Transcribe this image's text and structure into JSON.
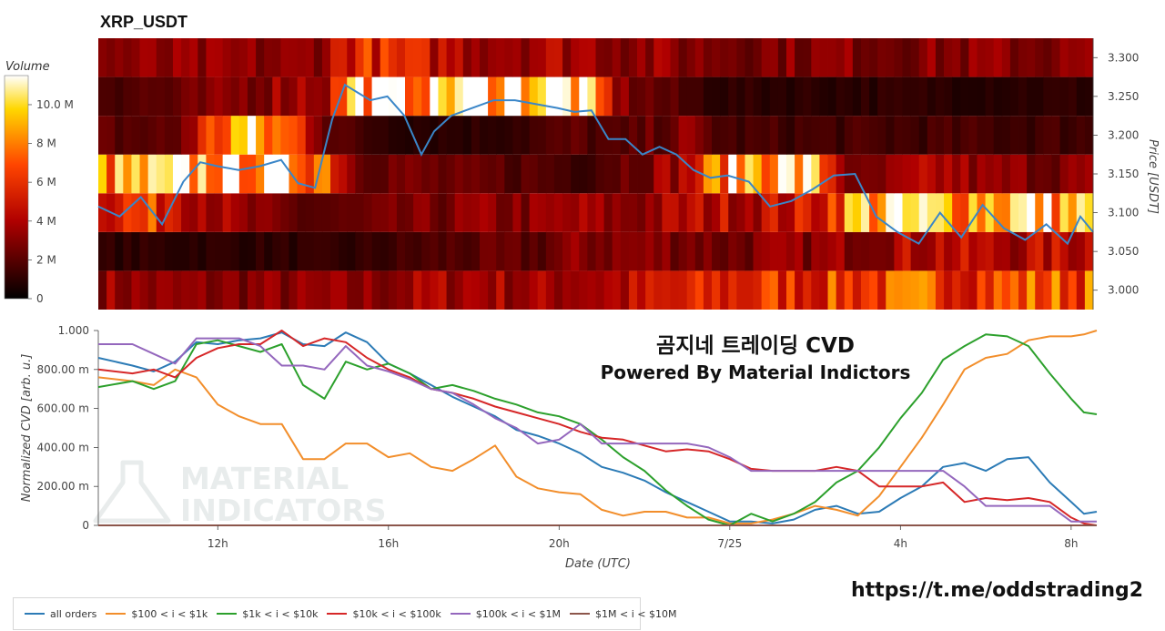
{
  "header": {
    "title": "XRP_USDT"
  },
  "overlay": {
    "line1": "곰지네 트레이딩 CVD",
    "line2": "Powered By Material Indictors"
  },
  "link_text": "https://t.me/oddstrading2",
  "watermark": {
    "line1": "MATERIAL",
    "line2": "INDICATORS"
  },
  "colors": {
    "all_orders": "#2c7bb6",
    "s100_1k": "#f28e2b",
    "s1k_10k": "#2ca02c",
    "s10k_100k": "#d62728",
    "s100k_1m": "#9467bd",
    "s1m_10m": "#8c564b",
    "price_line": "#3a86c8"
  },
  "legend": {
    "items": [
      {
        "label": "all orders",
        "color_key": "all_orders"
      },
      {
        "label": "$100 < i < $1k",
        "color_key": "s100_1k"
      },
      {
        "label": "$1k < i < $10k",
        "color_key": "s1k_10k"
      },
      {
        "label": "$10k < i < $100k",
        "color_key": "s10k_100k"
      },
      {
        "label": "$100k < i < $1M",
        "color_key": "s100k_1m"
      },
      {
        "label": "$1M < i < $10M",
        "color_key": "s1m_10m"
      }
    ]
  },
  "chart_data": [
    {
      "type": "heatmap",
      "title": "XRP_USDT",
      "ylabel": "Price [USDT]",
      "ylim": [
        2.975,
        3.325
      ],
      "yticks": [
        3.0,
        3.05,
        3.1,
        3.15,
        3.2,
        3.25,
        3.3
      ],
      "ytick_labels": [
        "3.000",
        "3.050",
        "3.100",
        "3.150",
        "3.200",
        "3.250",
        "3.300"
      ],
      "price_bins": [
        3.0,
        3.05,
        3.1,
        3.15,
        3.2,
        3.25,
        3.3
      ],
      "time_range_hours": [
        9.2,
        32.6
      ],
      "colorbar": {
        "label": "Volume",
        "range": [
          0,
          11500000
        ],
        "ticks": [
          0,
          2000000,
          4000000,
          6000000,
          8000000,
          10000000
        ],
        "tick_labels": [
          "0",
          "2 M",
          "4 M",
          "6 M",
          "8 M",
          "10.0 M"
        ]
      },
      "volume_keyframes": {
        "hours": [
          9.2,
          11,
          12.5,
          14,
          14.6,
          15.2,
          16.5,
          18,
          19.5,
          20.5,
          21.5,
          23,
          24,
          25,
          26,
          27,
          28,
          29,
          30,
          31,
          32,
          32.6
        ],
        "bins": [
          [
            3.5,
            3,
            3,
            3,
            3,
            3,
            3.5,
            4,
            3.5,
            4,
            4,
            5,
            5.5,
            6,
            6,
            6.5,
            6.5,
            7,
            6.5,
            7,
            7,
            7
          ],
          [
            1,
            1,
            1,
            1,
            1,
            1,
            1.5,
            2,
            2,
            3,
            3,
            3,
            2.5,
            3,
            3,
            3.5,
            4,
            4.5,
            4,
            4,
            4.5,
            4.5
          ],
          [
            6,
            6,
            3,
            2,
            2,
            2,
            2.5,
            3,
            3,
            3.5,
            3,
            4,
            4.5,
            4.5,
            5,
            9,
            10,
            9,
            9.5,
            10,
            9,
            9
          ],
          [
            8,
            9,
            10,
            9,
            8,
            3,
            2.5,
            2,
            2,
            1.5,
            2.5,
            4,
            9,
            10,
            9,
            2,
            3,
            4,
            3,
            3,
            3,
            3
          ],
          [
            2,
            2,
            9.5,
            6,
            2.5,
            1.5,
            1,
            1,
            1.5,
            2,
            1.5,
            3,
            1.5,
            1.5,
            1.5,
            1.5,
            1.5,
            1.5,
            1.5,
            1.5,
            1.5,
            1.5
          ],
          [
            2,
            2,
            3,
            4,
            4,
            10,
            9.5,
            11,
            11,
            10,
            3,
            1.5,
            1,
            1,
            1,
            1,
            1,
            1,
            1,
            1,
            1,
            1
          ],
          [
            3,
            3,
            3,
            3,
            4,
            6,
            5,
            4,
            4,
            4,
            3.5,
            3,
            3,
            3,
            3,
            3,
            3,
            3,
            3,
            3,
            3,
            3
          ]
        ]
      },
      "price_line": {
        "hours": [
          9.2,
          9.7,
          10.2,
          10.7,
          11.2,
          11.6,
          12.0,
          12.5,
          13.0,
          13.5,
          13.9,
          14.3,
          14.7,
          15.0,
          15.3,
          15.6,
          16.0,
          16.4,
          16.8,
          17.1,
          17.5,
          18.0,
          18.5,
          19.0,
          19.5,
          20.0,
          20.4,
          20.8,
          21.2,
          21.6,
          22.0,
          22.4,
          22.8,
          23.2,
          23.6,
          24.0,
          24.5,
          25.0,
          25.5,
          26.0,
          26.5,
          27.0,
          27.5,
          28.0,
          28.5,
          29.0,
          29.5,
          30.0,
          30.5,
          31.0,
          31.5,
          32.0,
          32.3,
          32.6
        ],
        "prices": [
          3.108,
          3.095,
          3.12,
          3.085,
          3.14,
          3.165,
          3.16,
          3.155,
          3.16,
          3.168,
          3.138,
          3.132,
          3.22,
          3.265,
          3.255,
          3.245,
          3.25,
          3.225,
          3.175,
          3.205,
          3.225,
          3.235,
          3.245,
          3.245,
          3.24,
          3.235,
          3.23,
          3.232,
          3.195,
          3.195,
          3.175,
          3.185,
          3.175,
          3.155,
          3.145,
          3.148,
          3.14,
          3.108,
          3.115,
          3.13,
          3.148,
          3.15,
          3.095,
          3.075,
          3.06,
          3.1,
          3.068,
          3.11,
          3.08,
          3.065,
          3.085,
          3.06,
          3.095,
          3.075
        ]
      }
    },
    {
      "type": "line",
      "xlabel": "Date (UTC)",
      "ylabel": "Normalized CVD [arb. u.]",
      "ylim": [
        0,
        1
      ],
      "yticks": [
        0,
        0.2,
        0.4,
        0.6,
        0.8,
        1.0
      ],
      "ytick_labels": [
        "0",
        "200.00 m",
        "400.00 m",
        "600.00 m",
        "800.00 m",
        "1.000"
      ],
      "xlim_hours": [
        9.2,
        32.6
      ],
      "xticks": [
        12,
        16,
        20,
        24,
        28,
        32
      ],
      "xtick_labels": [
        "12h",
        "16h",
        "20h",
        "7/25",
        "4h",
        "8h"
      ],
      "series": [
        {
          "name": "all orders",
          "color_key": "all_orders",
          "x": [
            9.2,
            10,
            10.5,
            11,
            11.5,
            12,
            12.5,
            13,
            13.5,
            14,
            14.5,
            15,
            15.5,
            16,
            16.5,
            17,
            17.5,
            18,
            18.5,
            19,
            19.5,
            20,
            20.5,
            21,
            21.5,
            22,
            22.5,
            23,
            23.5,
            24,
            24.5,
            25,
            25.5,
            26,
            26.5,
            27,
            27.5,
            28,
            28.5,
            29,
            29.5,
            30,
            30.5,
            31,
            31.5,
            32,
            32.3,
            32.6
          ],
          "y": [
            0.86,
            0.82,
            0.79,
            0.84,
            0.94,
            0.93,
            0.95,
            0.96,
            0.99,
            0.93,
            0.92,
            0.99,
            0.94,
            0.83,
            0.78,
            0.72,
            0.66,
            0.61,
            0.56,
            0.49,
            0.46,
            0.42,
            0.37,
            0.3,
            0.27,
            0.23,
            0.17,
            0.12,
            0.07,
            0.02,
            0.02,
            0.01,
            0.03,
            0.08,
            0.1,
            0.06,
            0.07,
            0.14,
            0.2,
            0.3,
            0.32,
            0.28,
            0.34,
            0.35,
            0.22,
            0.12,
            0.06,
            0.07
          ]
        },
        {
          "name": "$100 < i < $1k",
          "color_key": "s100_1k",
          "x": [
            9.2,
            10,
            10.5,
            11,
            11.5,
            12,
            12.5,
            13,
            13.5,
            14,
            14.5,
            15,
            15.5,
            16,
            16.5,
            17,
            17.5,
            18,
            18.5,
            19,
            19.5,
            20,
            20.5,
            21,
            21.5,
            22,
            22.5,
            23,
            23.5,
            24,
            24.5,
            25,
            25.5,
            26,
            26.5,
            27,
            27.5,
            28,
            28.5,
            29,
            29.5,
            30,
            30.5,
            31,
            31.5,
            32,
            32.3,
            32.6
          ],
          "y": [
            0.76,
            0.74,
            0.72,
            0.8,
            0.76,
            0.62,
            0.56,
            0.52,
            0.52,
            0.34,
            0.34,
            0.42,
            0.42,
            0.35,
            0.37,
            0.3,
            0.28,
            0.34,
            0.41,
            0.25,
            0.19,
            0.17,
            0.16,
            0.08,
            0.05,
            0.07,
            0.07,
            0.04,
            0.04,
            0.01,
            0.01,
            0.03,
            0.06,
            0.1,
            0.08,
            0.05,
            0.15,
            0.3,
            0.45,
            0.62,
            0.8,
            0.86,
            0.88,
            0.95,
            0.97,
            0.97,
            0.98,
            1.0
          ]
        },
        {
          "name": "$1k < i < $10k",
          "color_key": "s1k_10k",
          "x": [
            9.2,
            10,
            10.5,
            11,
            11.5,
            12,
            12.5,
            13,
            13.5,
            14,
            14.5,
            15,
            15.5,
            16,
            16.5,
            17,
            17.5,
            18,
            18.5,
            19,
            19.5,
            20,
            20.5,
            21,
            21.5,
            22,
            22.5,
            23,
            23.5,
            24,
            24.5,
            25,
            25.5,
            26,
            26.5,
            27,
            27.5,
            28,
            28.5,
            29,
            29.5,
            30,
            30.5,
            31,
            31.5,
            32,
            32.3,
            32.6
          ],
          "y": [
            0.71,
            0.74,
            0.7,
            0.74,
            0.93,
            0.95,
            0.92,
            0.89,
            0.93,
            0.72,
            0.65,
            0.84,
            0.8,
            0.83,
            0.78,
            0.7,
            0.72,
            0.69,
            0.65,
            0.62,
            0.58,
            0.56,
            0.52,
            0.44,
            0.35,
            0.28,
            0.18,
            0.1,
            0.03,
            0.0,
            0.06,
            0.02,
            0.06,
            0.12,
            0.22,
            0.28,
            0.4,
            0.55,
            0.68,
            0.85,
            0.92,
            0.98,
            0.97,
            0.92,
            0.78,
            0.65,
            0.58,
            0.57
          ]
        },
        {
          "name": "$10k < i < $100k",
          "color_key": "s10k_100k",
          "x": [
            9.2,
            10,
            10.5,
            11,
            11.5,
            12,
            12.5,
            13,
            13.5,
            14,
            14.5,
            15,
            15.5,
            16,
            16.5,
            17,
            17.5,
            18,
            18.5,
            19,
            19.5,
            20,
            20.5,
            21,
            21.5,
            22,
            22.5,
            23,
            23.5,
            24,
            24.5,
            25,
            25.5,
            26,
            26.5,
            27,
            27.5,
            28,
            28.5,
            29,
            29.5,
            30,
            30.5,
            31,
            31.5,
            32,
            32.3,
            32.6
          ],
          "y": [
            0.8,
            0.78,
            0.8,
            0.76,
            0.86,
            0.91,
            0.93,
            0.93,
            1.0,
            0.92,
            0.96,
            0.94,
            0.86,
            0.8,
            0.76,
            0.7,
            0.68,
            0.65,
            0.61,
            0.58,
            0.55,
            0.52,
            0.48,
            0.45,
            0.44,
            0.41,
            0.38,
            0.39,
            0.38,
            0.34,
            0.29,
            0.28,
            0.28,
            0.28,
            0.3,
            0.28,
            0.2,
            0.2,
            0.2,
            0.22,
            0.12,
            0.14,
            0.13,
            0.14,
            0.12,
            0.04,
            0.01,
            0.0
          ]
        },
        {
          "name": "$100k < i < $1M",
          "color_key": "s100k_1m",
          "x": [
            9.2,
            10,
            10.5,
            11,
            11.5,
            12,
            12.5,
            13,
            13.5,
            14,
            14.5,
            15,
            15.5,
            16,
            16.5,
            17,
            17.5,
            18,
            18.5,
            19,
            19.5,
            20,
            20.5,
            21,
            21.5,
            22,
            22.5,
            23,
            23.5,
            24,
            24.5,
            25,
            25.5,
            26,
            26.5,
            27,
            27.5,
            28,
            28.5,
            29,
            29.5,
            30,
            30.5,
            31,
            31.5,
            32,
            32.3,
            32.6
          ],
          "y": [
            0.93,
            0.93,
            0.88,
            0.83,
            0.96,
            0.96,
            0.96,
            0.92,
            0.82,
            0.82,
            0.8,
            0.92,
            0.82,
            0.79,
            0.75,
            0.7,
            0.68,
            0.62,
            0.55,
            0.5,
            0.42,
            0.44,
            0.52,
            0.42,
            0.42,
            0.42,
            0.42,
            0.42,
            0.4,
            0.35,
            0.28,
            0.28,
            0.28,
            0.28,
            0.28,
            0.28,
            0.28,
            0.28,
            0.28,
            0.28,
            0.2,
            0.1,
            0.1,
            0.1,
            0.1,
            0.02,
            0.02,
            0.02
          ]
        },
        {
          "name": "$1M < i < $10M",
          "color_key": "s1m_10m",
          "x": [
            9.2,
            32.6
          ],
          "y": [
            0.0,
            0.0
          ]
        }
      ]
    }
  ]
}
